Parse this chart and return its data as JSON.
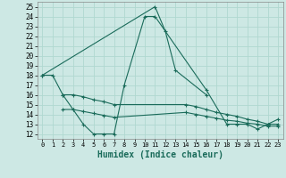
{
  "xlabel": "Humidex (Indice chaleur)",
  "x_ticks": [
    0,
    1,
    2,
    3,
    4,
    5,
    6,
    7,
    8,
    9,
    10,
    11,
    12,
    13,
    14,
    15,
    16,
    17,
    18,
    19,
    20,
    21,
    22,
    23
  ],
  "xlim": [
    -0.5,
    23.5
  ],
  "ylim": [
    11.5,
    25.5
  ],
  "y_ticks": [
    12,
    13,
    14,
    15,
    16,
    17,
    18,
    19,
    20,
    21,
    22,
    23,
    24,
    25
  ],
  "background_color": "#cde8e4",
  "grid_color": "#b0d8d0",
  "line_color": "#1a6b5a",
  "series1_x": [
    0,
    1,
    2,
    3,
    4,
    5,
    6,
    7,
    8,
    10,
    11,
    16,
    18,
    19,
    20,
    21,
    22,
    23
  ],
  "series1_y": [
    18,
    18,
    16,
    14.5,
    13,
    12,
    12,
    12,
    17,
    24,
    24,
    16.5,
    13,
    13,
    13,
    12.5,
    13,
    13.5
  ],
  "series2_x": [
    0,
    11,
    12,
    13,
    16
  ],
  "series2_y": [
    18,
    25,
    22.5,
    18.5,
    16
  ],
  "series3_x": [
    2,
    3,
    4,
    5,
    6,
    7,
    14,
    15,
    16,
    17,
    18,
    19,
    20,
    21,
    22,
    23
  ],
  "series3_y": [
    16,
    16,
    15.8,
    15.5,
    15.3,
    15.0,
    15.0,
    14.8,
    14.5,
    14.2,
    14.0,
    13.8,
    13.5,
    13.3,
    13.0,
    13.0
  ],
  "series4_x": [
    2,
    3,
    4,
    5,
    6,
    7,
    14,
    15,
    16,
    17,
    18,
    19,
    20,
    21,
    22,
    23
  ],
  "series4_y": [
    14.5,
    14.5,
    14.3,
    14.1,
    13.9,
    13.7,
    14.2,
    14.0,
    13.8,
    13.6,
    13.4,
    13.3,
    13.1,
    13.0,
    12.8,
    12.8
  ]
}
